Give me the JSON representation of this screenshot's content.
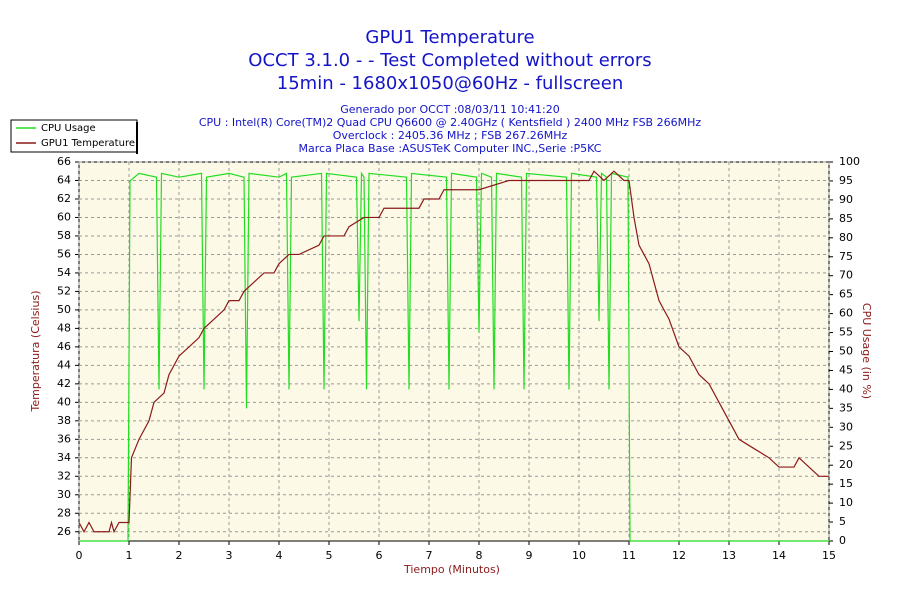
{
  "chart_data": {
    "type": "line",
    "title": "GPU1 Temperature",
    "subtitle": [
      "OCCT 3.1.0 -  - Test Completed without errors",
      "15min - 1680x1050@60Hz - fullscreen"
    ],
    "info": [
      "Generado por OCCT :08/03/11 10:41:20",
      "CPU : Intel(R) Core(TM)2 Quad CPU Q6600 @ 2.40GHz ( Kentsfield ) 2400 MHz FSB 266MHz",
      "Overclock : 2405.36 MHz ; FSB 267.26MHz",
      "Marca Placa Base :ASUSTeK Computer INC.,Serie :P5KC"
    ],
    "xlabel": "Tiempo (Minutos)",
    "ylabel": "Temperatura (Celsius)",
    "y2label": "CPU Usage (in %)",
    "xlim": [
      0,
      15
    ],
    "xticks": [
      0,
      1,
      2,
      3,
      4,
      5,
      6,
      7,
      8,
      9,
      10,
      11,
      12,
      13,
      14,
      15
    ],
    "ylim": [
      25,
      66
    ],
    "yticks": [
      26,
      28,
      30,
      32,
      34,
      36,
      38,
      40,
      42,
      44,
      46,
      48,
      50,
      52,
      54,
      56,
      58,
      60,
      62,
      64,
      66
    ],
    "y2lim": [
      0,
      100
    ],
    "y2ticks": [
      0,
      5,
      10,
      15,
      20,
      25,
      30,
      35,
      40,
      45,
      50,
      55,
      60,
      65,
      70,
      75,
      80,
      85,
      90,
      95,
      100
    ],
    "grid": true,
    "series": [
      {
        "name": "CPU Usage",
        "color": "#22dd22",
        "axis": "y2",
        "x": [
          0,
          0.98,
          1.02,
          1.2,
          1.55,
          1.6,
          1.65,
          2.0,
          2.45,
          2.5,
          2.55,
          3.0,
          3.3,
          3.35,
          3.4,
          4.0,
          4.15,
          4.2,
          4.25,
          4.85,
          4.9,
          4.95,
          5.55,
          5.6,
          5.65,
          5.7,
          5.75,
          5.8,
          6.55,
          6.6,
          6.65,
          7.35,
          7.4,
          7.45,
          7.95,
          8.0,
          8.05,
          8.25,
          8.3,
          8.35,
          8.85,
          8.9,
          8.95,
          9.75,
          9.8,
          9.85,
          10.35,
          10.4,
          10.45,
          10.55,
          10.6,
          10.65,
          10.98,
          11.02,
          15
        ],
        "values": [
          0,
          0,
          95,
          97,
          96,
          40,
          97,
          96,
          97,
          40,
          96,
          97,
          96,
          35,
          97,
          96,
          97,
          40,
          96,
          97,
          40,
          97,
          96,
          58,
          97,
          96,
          40,
          97,
          96,
          40,
          97,
          96,
          40,
          97,
          96,
          55,
          97,
          96,
          40,
          97,
          96,
          40,
          97,
          96,
          40,
          97,
          96,
          58,
          97,
          96,
          40,
          97,
          96,
          0,
          0
        ]
      },
      {
        "name": "GPU1 Temperature",
        "color": "#8b1a1a",
        "x": [
          0,
          0.1,
          0.2,
          0.3,
          0.4,
          0.6,
          0.65,
          0.7,
          0.8,
          1.0,
          1.05,
          1.2,
          1.4,
          1.5,
          1.7,
          1.8,
          2.0,
          2.2,
          2.4,
          2.5,
          2.7,
          2.9,
          3.0,
          3.2,
          3.3,
          3.5,
          3.7,
          3.9,
          4.0,
          4.2,
          4.4,
          4.8,
          4.9,
          5.3,
          5.4,
          5.7,
          6.0,
          6.1,
          6.8,
          6.9,
          7.2,
          7.3,
          8.0,
          8.6,
          9.0,
          10.2,
          10.3,
          10.5,
          10.7,
          10.9,
          11.0,
          11.1,
          11.2,
          11.4,
          11.6,
          11.8,
          12.0,
          12.2,
          12.4,
          12.6,
          12.8,
          13.0,
          13.2,
          13.5,
          13.8,
          14.0,
          14.3,
          14.4,
          14.6,
          14.8,
          15.0
        ],
        "values": [
          27,
          26,
          27,
          26,
          26,
          26,
          27,
          26,
          27,
          27,
          34,
          36,
          38,
          40,
          41,
          43,
          45,
          46,
          47,
          48,
          49,
          50,
          51,
          51,
          52,
          53,
          54,
          54,
          55,
          56,
          56,
          57,
          58,
          58,
          59,
          60,
          60,
          61,
          61,
          62,
          62,
          63,
          63,
          64,
          64,
          64,
          65,
          64,
          65,
          64,
          64,
          60,
          57,
          55,
          51,
          49,
          46,
          45,
          43,
          42,
          40,
          38,
          36,
          35,
          34,
          33,
          33,
          34,
          33,
          32,
          32
        ]
      }
    ]
  }
}
